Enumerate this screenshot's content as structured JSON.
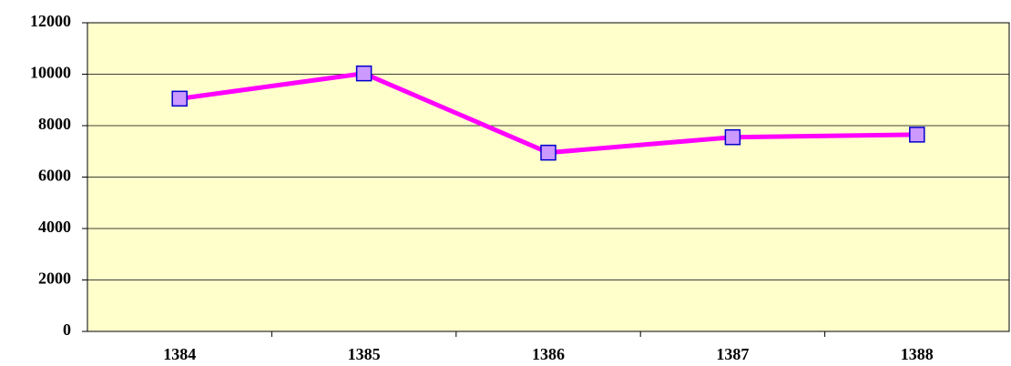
{
  "chart_data": {
    "type": "line",
    "categories": [
      "1384",
      "1385",
      "1386",
      "1387",
      "1388"
    ],
    "series": [
      {
        "color": "#ff00ff",
        "marker_fill": "#cc99ff",
        "marker_edge": "#0000cc",
        "values": [
          9050,
          10030,
          6950,
          7550,
          7650
        ]
      }
    ],
    "ylim": [
      0,
      12000
    ],
    "yticks": [
      0,
      2000,
      4000,
      6000,
      8000,
      10000,
      12000
    ],
    "grid": true,
    "background": "#ffffcc"
  }
}
